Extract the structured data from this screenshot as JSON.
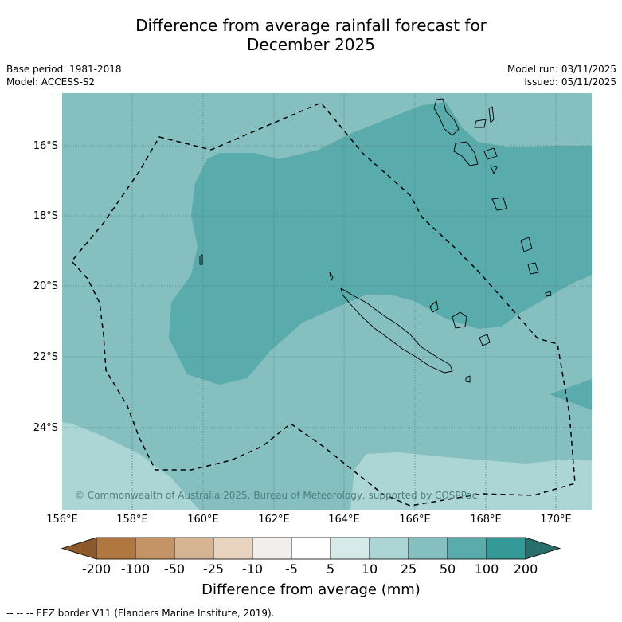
{
  "title": {
    "line1": "Difference from average rainfall forecast for",
    "line2": "December 2025"
  },
  "meta": {
    "base_period": "Base period: 1981-2018",
    "model": "Model: ACCESS-S2",
    "model_run": "Model run: 03/11/2025",
    "issued": "Issued: 05/11/2025"
  },
  "map": {
    "credit": "© Commonwealth of Australia 2025, Bureau of Meteorology, supported by COSPPac",
    "lat_labels": [
      "16°S",
      "18°S",
      "20°S",
      "22°S",
      "24°S"
    ],
    "lon_labels": [
      "156°E",
      "158°E",
      "160°E",
      "162°E",
      "164°E",
      "166°E",
      "168°E",
      "170°E"
    ]
  },
  "colorbar": {
    "title": "Difference from average (mm)",
    "labels": [
      "-200",
      "-100",
      "-50",
      "-25",
      "-10",
      "-5",
      "5",
      "10",
      "25",
      "50",
      "100",
      "200"
    ],
    "colors": [
      "#8c5a2a",
      "#b07840",
      "#c49466",
      "#d5b393",
      "#e8d3bf",
      "#f2eeeb",
      "#ffffff",
      "#d6ebe9",
      "#acd6d5",
      "#86bfbf",
      "#5aabab",
      "#359a97",
      "#2a6e6c"
    ]
  },
  "legend": {
    "text": "--  --  -- EEZ border V11 (Flanders Marine Institute, 2019)."
  }
}
